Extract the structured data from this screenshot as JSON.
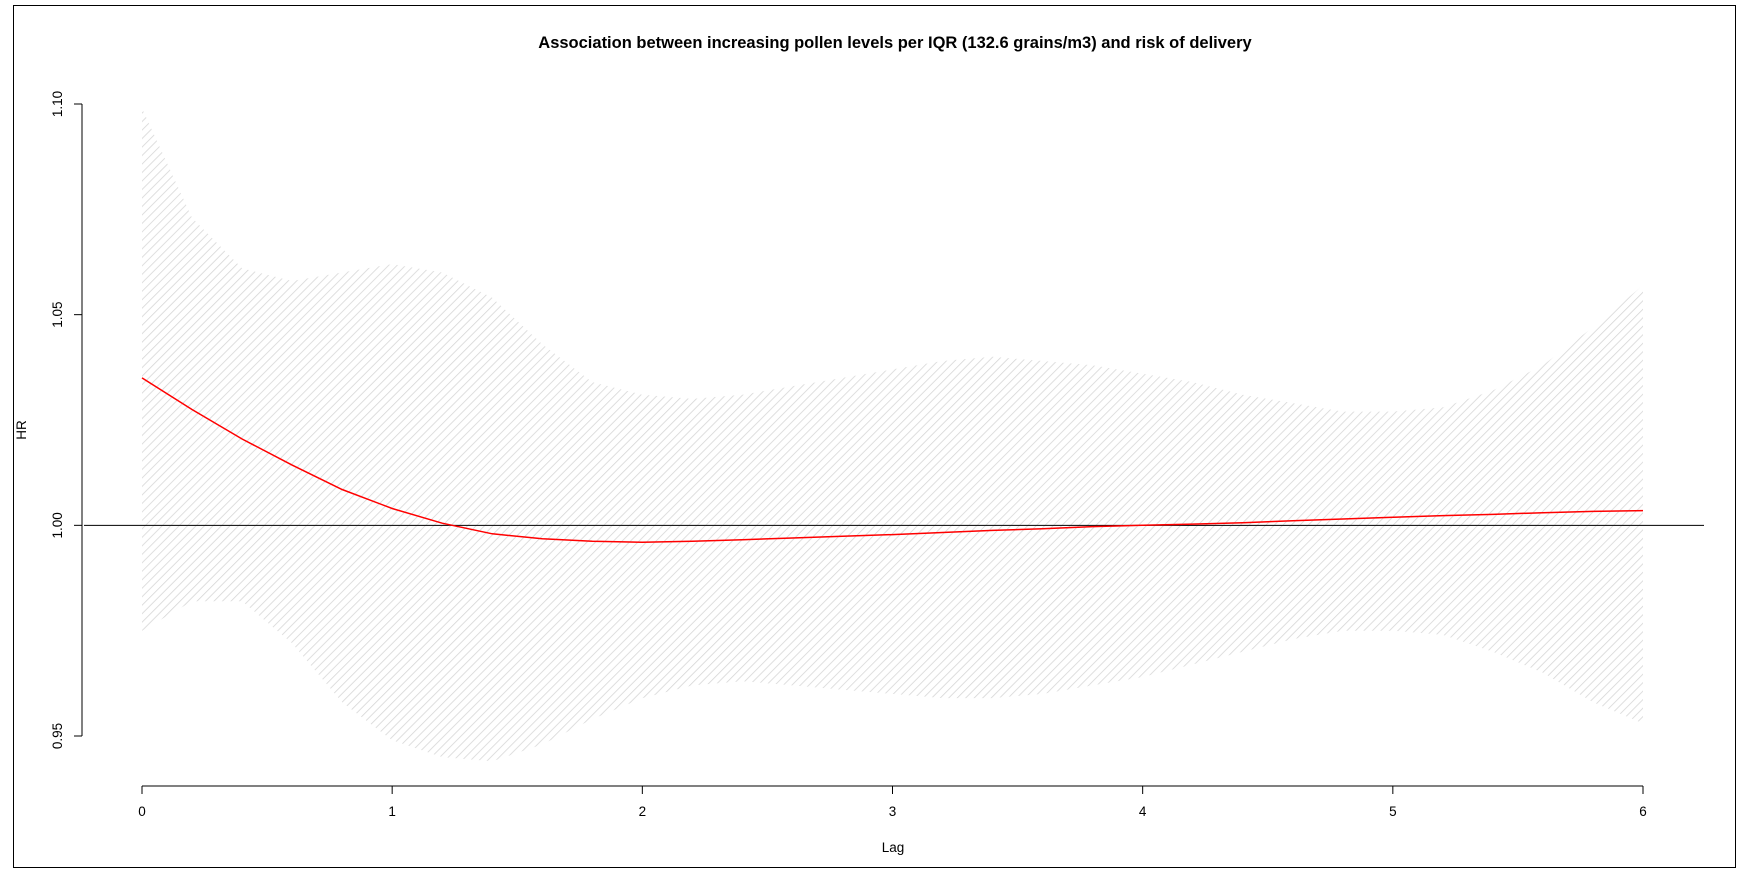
{
  "chart_data": {
    "type": "line",
    "title": "Association between increasing pollen levels per IQR (132.6 grains/m3) and risk of delivery",
    "xlabel": "Lag",
    "ylabel": "HR",
    "xlim": [
      0,
      6
    ],
    "ylim": [
      0.95,
      1.1
    ],
    "x_ticks": [
      "0",
      "1",
      "2",
      "3",
      "4",
      "5",
      "6"
    ],
    "y_ticks": [
      "0.95",
      "1.00",
      "1.05",
      "1.10"
    ],
    "reference_line": 1.0,
    "colors": {
      "estimate": "#ff0000",
      "ci_hatch": "#d6d6d6",
      "reference": "#000000"
    },
    "series": [
      {
        "role": "estimate",
        "x": [
          0,
          0.2,
          0.4,
          0.6,
          0.8,
          1.0,
          1.2,
          1.4,
          1.6,
          1.8,
          2.0,
          2.2,
          2.4,
          2.6,
          2.8,
          3.0,
          3.2,
          3.4,
          3.6,
          3.8,
          4.0,
          4.2,
          4.4,
          4.6,
          4.8,
          5.0,
          5.2,
          5.4,
          5.6,
          5.8,
          6.0
        ],
        "y": [
          1.035,
          1.0275,
          1.0205,
          1.0143,
          1.0085,
          1.004,
          1.0005,
          0.998,
          0.9968,
          0.9962,
          0.996,
          0.9962,
          0.9966,
          0.997,
          0.9974,
          0.9978,
          0.9983,
          0.9988,
          0.9992,
          0.9997,
          1.0,
          1.0003,
          1.0006,
          1.0011,
          1.0015,
          1.0019,
          1.0023,
          1.0026,
          1.003,
          1.0033,
          1.0035
        ]
      },
      {
        "role": "ci_upper",
        "x": [
          0,
          0.2,
          0.4,
          0.6,
          0.8,
          1.0,
          1.2,
          1.4,
          1.6,
          1.8,
          2.0,
          2.2,
          2.4,
          2.6,
          2.8,
          3.0,
          3.2,
          3.4,
          3.6,
          3.8,
          4.0,
          4.2,
          4.4,
          4.6,
          4.8,
          5.0,
          5.2,
          5.4,
          5.6,
          5.8,
          6.0
        ],
        "y": [
          1.099,
          1.073,
          1.061,
          1.058,
          1.06,
          1.062,
          1.06,
          1.054,
          1.043,
          1.034,
          1.031,
          1.03,
          1.031,
          1.033,
          1.035,
          1.037,
          1.039,
          1.04,
          1.039,
          1.038,
          1.036,
          1.034,
          1.031,
          1.029,
          1.027,
          1.027,
          1.028,
          1.032,
          1.038,
          1.047,
          1.057
        ]
      },
      {
        "role": "ci_lower",
        "x": [
          0,
          0.2,
          0.4,
          0.6,
          0.8,
          1.0,
          1.2,
          1.4,
          1.6,
          1.8,
          2.0,
          2.2,
          2.4,
          2.6,
          2.8,
          3.0,
          3.2,
          3.4,
          3.6,
          3.8,
          4.0,
          4.2,
          4.4,
          4.6,
          4.8,
          5.0,
          5.2,
          5.4,
          5.6,
          5.8,
          6.0
        ],
        "y": [
          0.975,
          0.982,
          0.982,
          0.972,
          0.958,
          0.949,
          0.945,
          0.944,
          0.948,
          0.954,
          0.959,
          0.962,
          0.963,
          0.962,
          0.961,
          0.96,
          0.959,
          0.959,
          0.96,
          0.962,
          0.964,
          0.967,
          0.97,
          0.973,
          0.975,
          0.975,
          0.974,
          0.97,
          0.965,
          0.958,
          0.953
        ]
      }
    ]
  }
}
